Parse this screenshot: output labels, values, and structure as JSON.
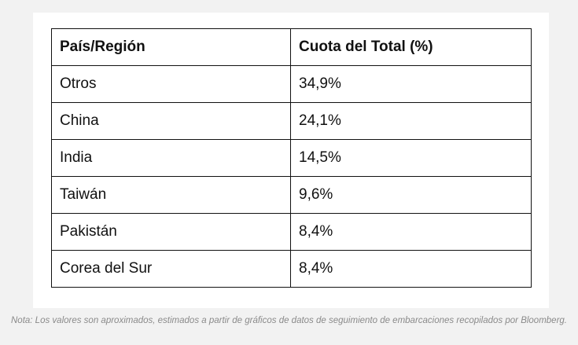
{
  "table": {
    "headers": [
      "País/Región",
      "Cuota del Total (%)"
    ],
    "rows": [
      [
        "Otros",
        "34,9%"
      ],
      [
        "China",
        "24,1%"
      ],
      [
        "India",
        "14,5%"
      ],
      [
        "Taiwán",
        "9,6%"
      ],
      [
        "Pakistán",
        "8,4%"
      ],
      [
        "Corea del Sur",
        "8,4%"
      ]
    ]
  },
  "note": "Nota: Los valores son aproximados, estimados a partir de gráficos de datos de seguimiento de embarcaciones recopilados por Bloomberg.",
  "chart_data": {
    "type": "table",
    "columns": [
      "País/Región",
      "Cuota del Total (%)"
    ],
    "categories": [
      "Otros",
      "China",
      "India",
      "Taiwán",
      "Pakistán",
      "Corea del Sur"
    ],
    "values": [
      34.9,
      24.1,
      14.5,
      9.6,
      8.4,
      8.4
    ]
  }
}
